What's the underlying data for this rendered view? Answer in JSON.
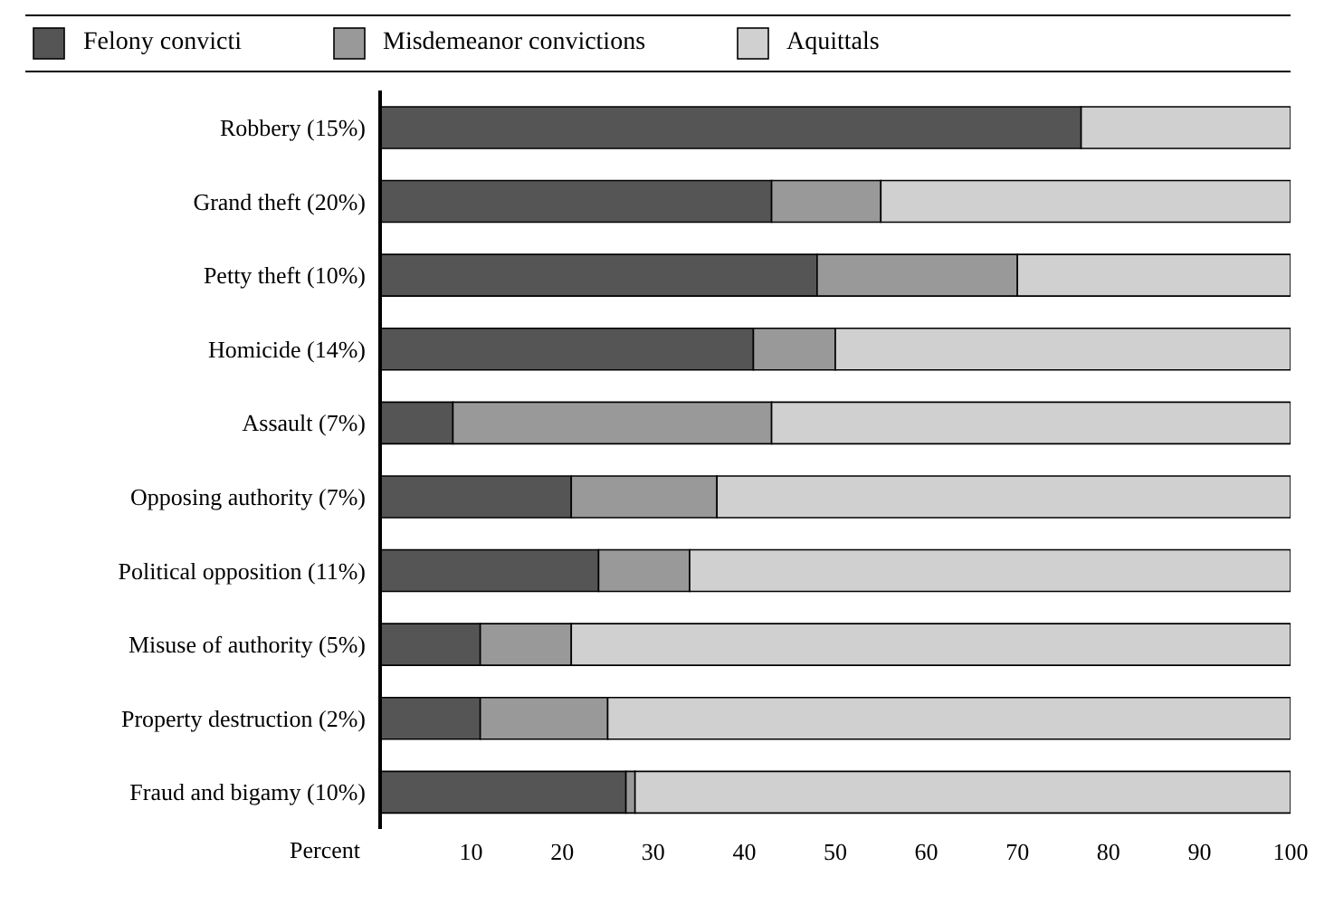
{
  "chart_data": {
    "type": "bar",
    "orientation": "horizontal",
    "stacked": true,
    "categories": [
      "Robbery (15%)",
      "Grand theft (20%)",
      "Petty theft (10%)",
      "Homicide (14%)",
      "Assault (7%)",
      "Opposing authority (7%)",
      "Political opposition (11%)",
      "Misuse of authority (5%)",
      "Property destruction (2%)",
      "Fraud and bigamy (10%)"
    ],
    "series": [
      {
        "name": "Felony convicti",
        "color": "#555555",
        "values": [
          77,
          43,
          48,
          41,
          8,
          21,
          24,
          11,
          11,
          27
        ]
      },
      {
        "name": "Misdemeanor convictions",
        "color": "#999999",
        "values": [
          0,
          12,
          22,
          9,
          35,
          16,
          10,
          10,
          14,
          1
        ]
      },
      {
        "name": "Aquittals",
        "color": "#d0d0d0",
        "values": [
          23,
          45,
          30,
          50,
          57,
          63,
          66,
          79,
          75,
          72
        ]
      }
    ],
    "xlabel": "Percent",
    "xlim": [
      0,
      100
    ],
    "xticks": [
      10,
      20,
      30,
      40,
      50,
      60,
      70,
      80,
      90,
      100
    ],
    "legend": "top"
  }
}
